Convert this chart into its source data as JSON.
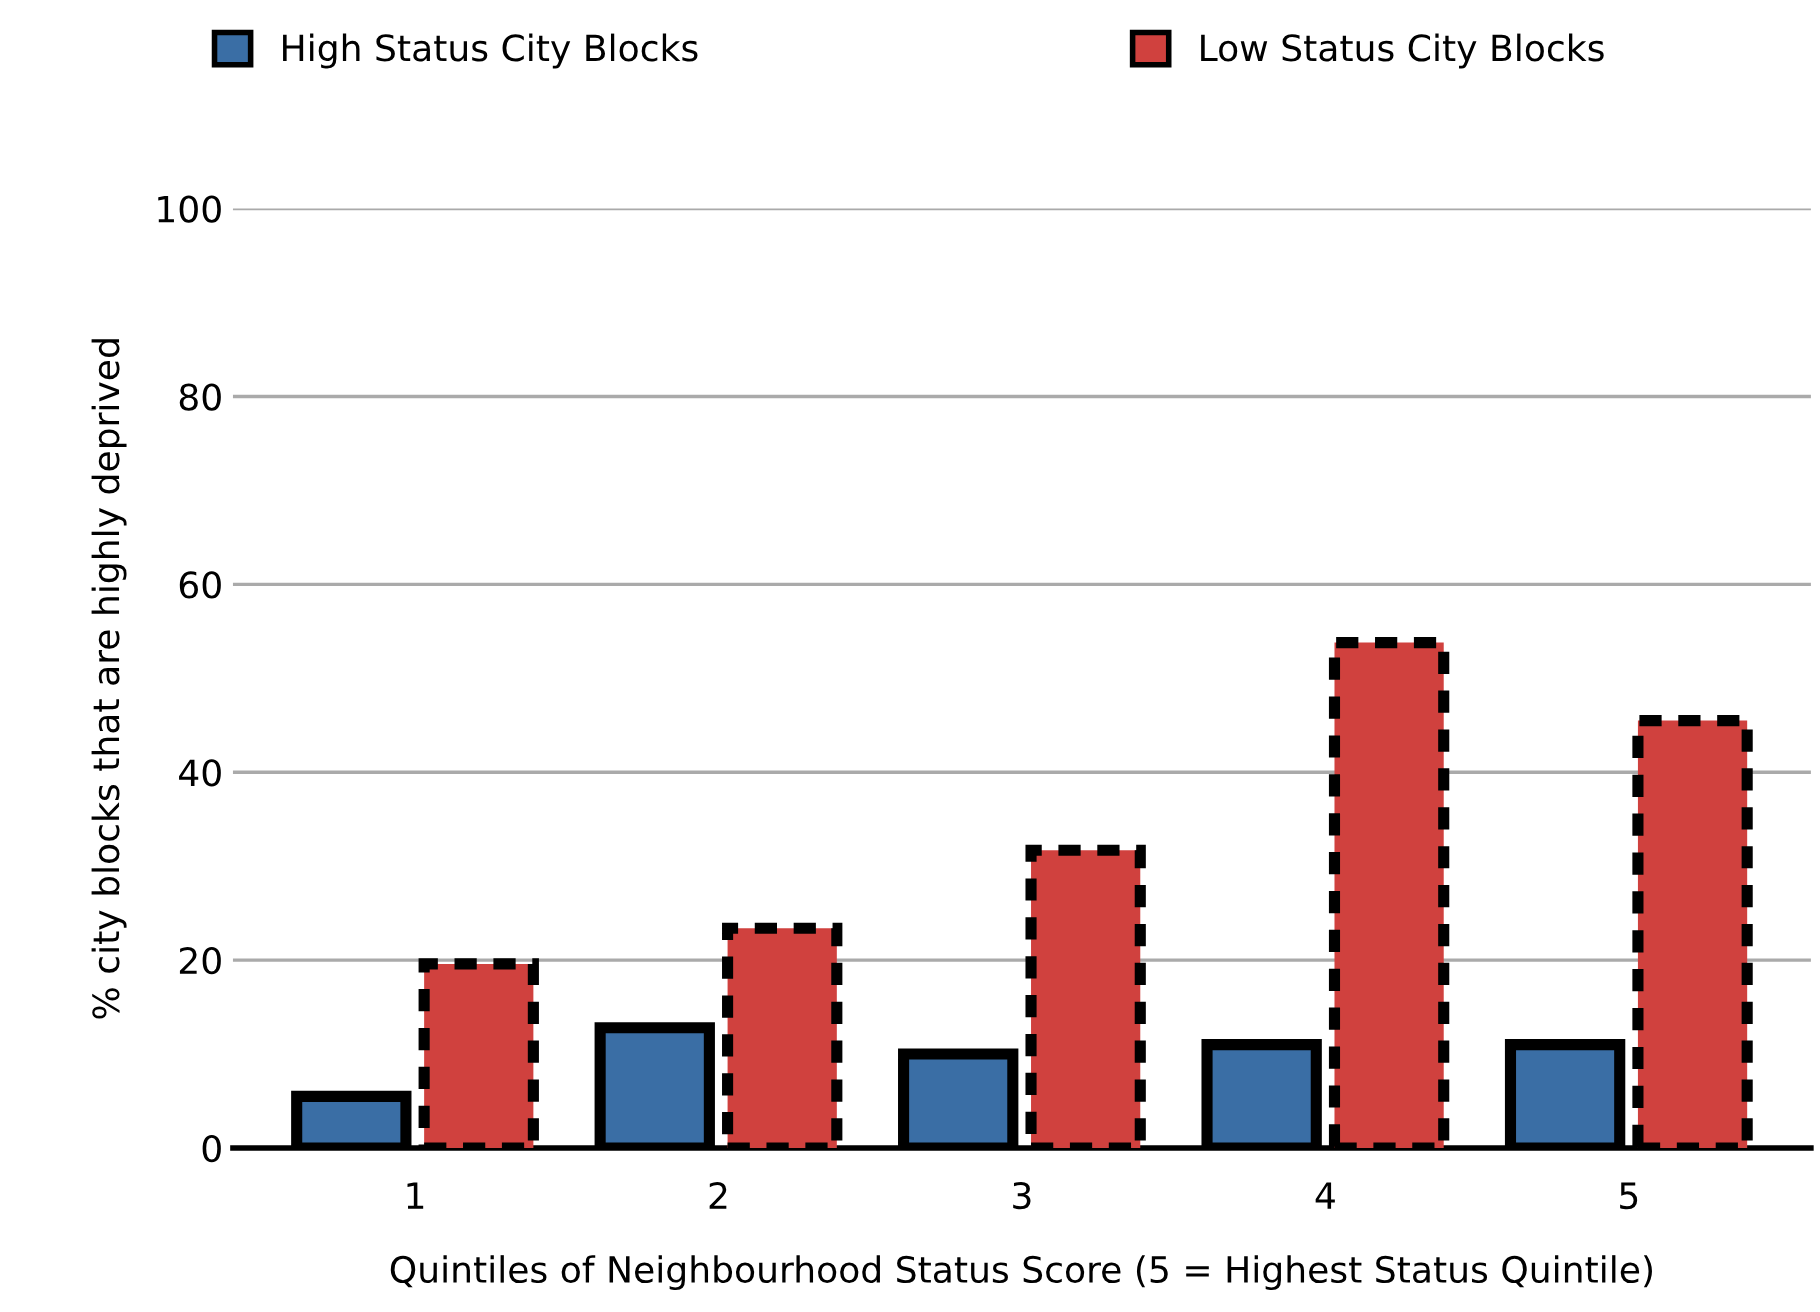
{
  "chart_data": {
    "type": "bar",
    "xlabel": "Quintiles of Neighbourhood Status Score (5 = Highest Status Quintile)",
    "ylabel": "% city blocks that are highly deprived",
    "categories": [
      "1",
      "2",
      "3",
      "4",
      "5"
    ],
    "series": [
      {
        "name": "High Status City Blocks",
        "color": "#3a6ea5",
        "line_style": "solid",
        "values": [
          5.5,
          12.8,
          10,
          11,
          11
        ]
      },
      {
        "name": "Low Status City Blocks",
        "color": "#d0413e",
        "line_style": "dashed",
        "values": [
          19.6,
          23.4,
          31.7,
          53.8,
          45.5
        ]
      }
    ],
    "ylim": [
      0,
      100
    ],
    "yticks": [
      0,
      20,
      40,
      60,
      80,
      100
    ],
    "grid": "y",
    "legend": "top"
  }
}
